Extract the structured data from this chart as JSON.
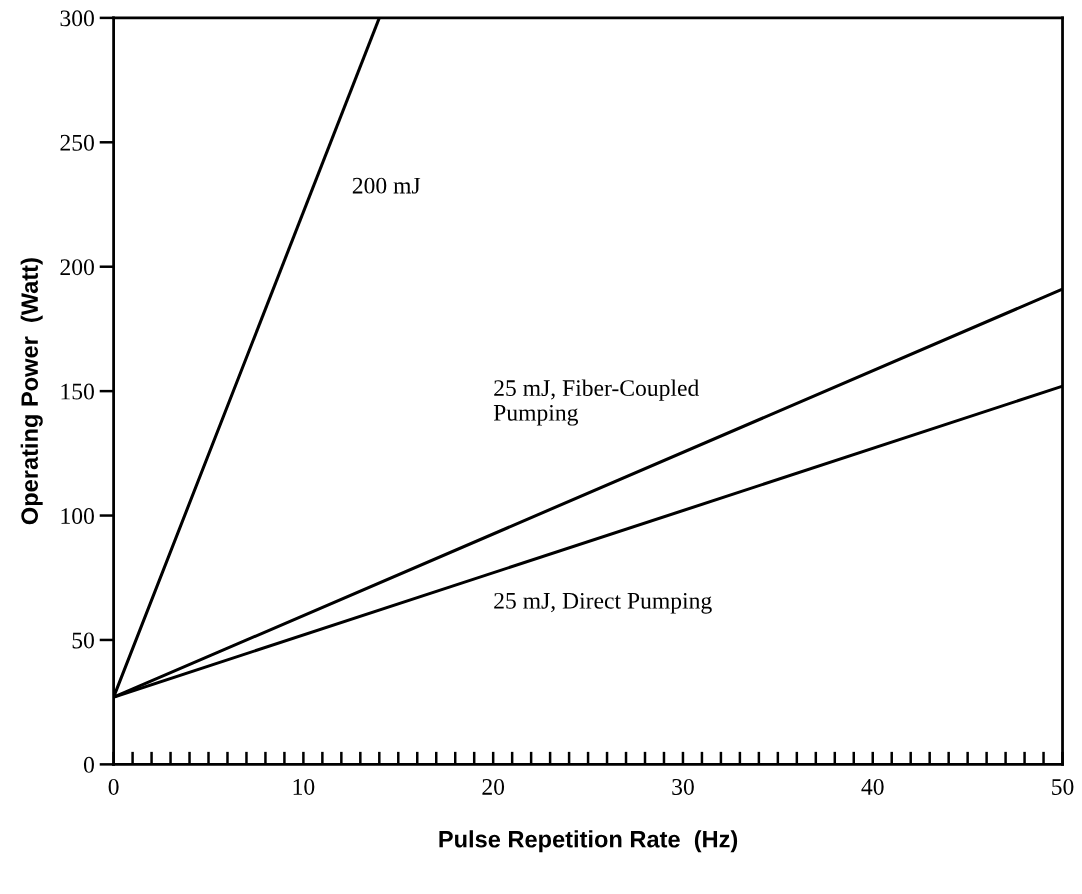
{
  "chart_data": {
    "type": "line",
    "xlabel": "Pulse Repetition Rate  (Hz)",
    "ylabel": "Operating Power  (Watt)",
    "xlim": [
      0,
      50
    ],
    "ylim": [
      0,
      300
    ],
    "xticks": [
      0,
      {
        "value": 1,
        "label": null
      },
      {
        "value": 2,
        "label": null
      },
      {
        "value": 3,
        "label": null
      },
      {
        "value": 4,
        "label": null
      },
      {
        "value": 5,
        "label": null
      },
      {
        "value": 6,
        "label": null
      },
      {
        "value": 7,
        "label": null
      },
      {
        "value": 8,
        "label": null
      },
      {
        "value": 9,
        "label": null
      },
      10,
      {
        "value": 11,
        "label": null
      },
      {
        "value": 12,
        "label": null
      },
      {
        "value": 13,
        "label": null
      },
      {
        "value": 14,
        "label": null
      },
      {
        "value": 15,
        "label": null
      },
      {
        "value": 16,
        "label": null
      },
      {
        "value": 17,
        "label": null
      },
      {
        "value": 18,
        "label": null
      },
      {
        "value": 19,
        "label": null
      },
      20,
      {
        "value": 21,
        "label": null
      },
      {
        "value": 22,
        "label": null
      },
      {
        "value": 23,
        "label": null
      },
      {
        "value": 24,
        "label": null
      },
      {
        "value": 25,
        "label": null
      },
      {
        "value": 26,
        "label": null
      },
      {
        "value": 27,
        "label": null
      },
      {
        "value": 28,
        "label": null
      },
      {
        "value": 29,
        "label": null
      },
      30,
      {
        "value": 31,
        "label": null
      },
      {
        "value": 32,
        "label": null
      },
      {
        "value": 33,
        "label": null
      },
      {
        "value": 34,
        "label": null
      },
      {
        "value": 35,
        "label": null
      },
      {
        "value": 36,
        "label": null
      },
      {
        "value": 37,
        "label": null
      },
      {
        "value": 38,
        "label": null
      },
      {
        "value": 39,
        "label": null
      },
      40,
      {
        "value": 41,
        "label": null
      },
      {
        "value": 42,
        "label": null
      },
      {
        "value": 43,
        "label": null
      },
      {
        "value": 44,
        "label": null
      },
      {
        "value": 45,
        "label": null
      },
      {
        "value": 46,
        "label": null
      },
      {
        "value": 47,
        "label": null
      },
      {
        "value": 48,
        "label": null
      },
      {
        "value": 49,
        "label": null
      },
      50
    ],
    "yticks": [
      0,
      50,
      100,
      150,
      200,
      250,
      300
    ],
    "grid": false,
    "legend": false,
    "marker": "none",
    "line_style": "solid",
    "series": [
      {
        "name": "200 mJ",
        "color": "#000000",
        "x": [
          0,
          14
        ],
        "values": [
          27,
          300
        ]
      },
      {
        "name": "25 mJ, Fiber-Coupled\nPumping",
        "color": "#000000",
        "x": [
          0,
          50
        ],
        "values": [
          27,
          191
        ]
      },
      {
        "name": "25 mJ, Direct Pumping",
        "color": "#000000",
        "x": [
          0,
          50
        ],
        "values": [
          27,
          152
        ]
      }
    ]
  }
}
